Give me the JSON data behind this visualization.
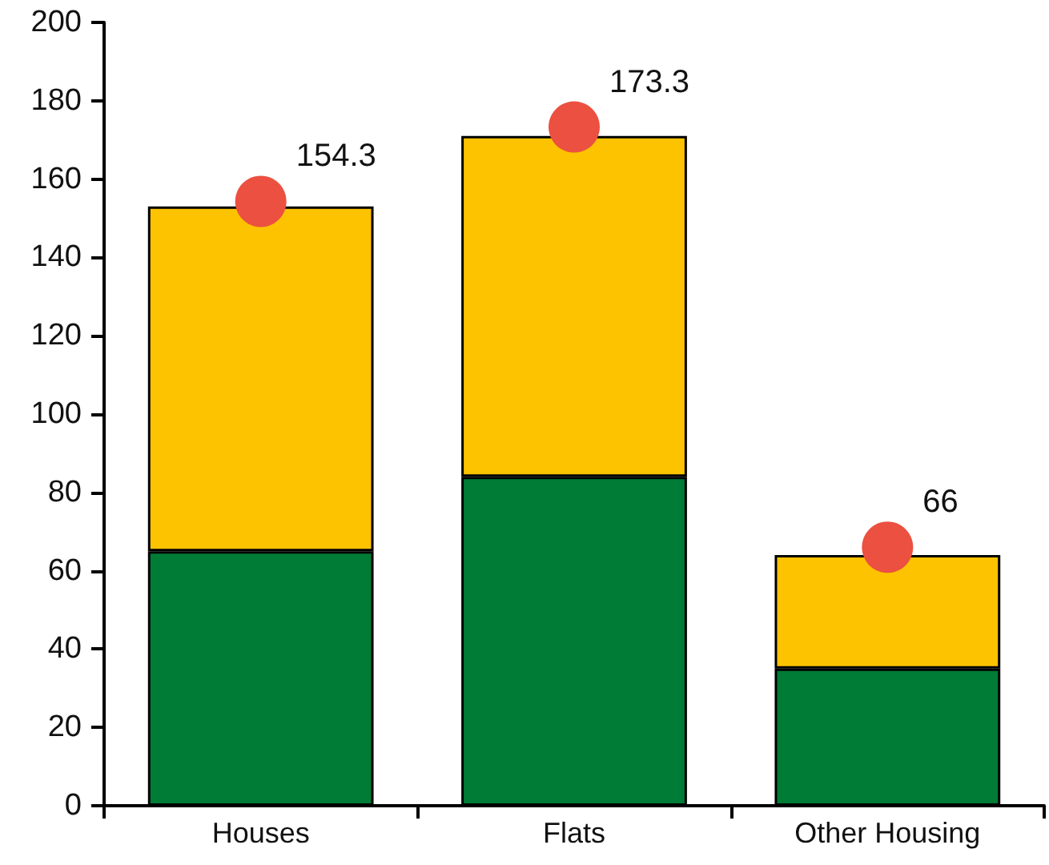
{
  "chart_data": {
    "type": "bar",
    "stacked": true,
    "categories": [
      "Houses",
      "Flats",
      "Other Housing"
    ],
    "series": [
      {
        "color": "#007c36",
        "values": [
          65,
          84,
          35
        ]
      },
      {
        "color": "#fdc300",
        "values": [
          88,
          87,
          29
        ]
      },
      {
        "type": "scatter",
        "color": "#ec5040",
        "x": [
          "Houses",
          "Flats",
          "Other Housing"
        ],
        "values": [
          154.3,
          173.3,
          66
        ],
        "value_labels": [
          "154.3",
          "173.3",
          "66"
        ],
        "marker": "circle"
      }
    ],
    "ylim": [
      0,
      200
    ],
    "yticks": [
      0,
      20,
      40,
      60,
      80,
      100,
      120,
      140,
      160,
      180,
      200
    ],
    "grid": false
  }
}
